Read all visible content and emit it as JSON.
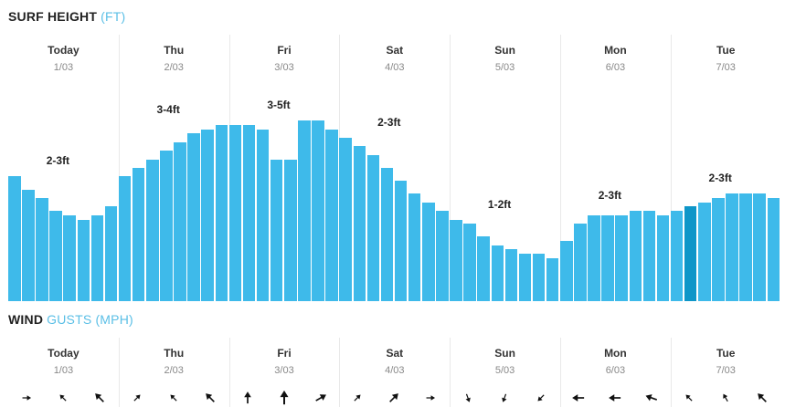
{
  "surf": {
    "title": "SURF HEIGHT",
    "unit": "(FT)",
    "accent_color": "#3ebaea",
    "selected_color": "#0e96c8",
    "days": [
      {
        "name": "Today",
        "date": "1/03",
        "label": "2-3ft"
      },
      {
        "name": "Thu",
        "date": "2/03",
        "label": "3-4ft"
      },
      {
        "name": "Fri",
        "date": "3/03",
        "label": "3-5ft"
      },
      {
        "name": "Sat",
        "date": "4/03",
        "label": "2-3ft"
      },
      {
        "name": "Sun",
        "date": "5/03",
        "label": "1-2ft"
      },
      {
        "name": "Mon",
        "date": "6/03",
        "label": "2-3ft"
      },
      {
        "name": "Tue",
        "date": "7/03",
        "label": "2-3ft"
      }
    ],
    "bars": [
      [
        2.9,
        2.6,
        2.4,
        2.1,
        2.0,
        1.9,
        2.0,
        2.2
      ],
      [
        2.9,
        3.1,
        3.3,
        3.5,
        3.7,
        3.9,
        4.0,
        4.1
      ],
      [
        4.1,
        4.1,
        4.0,
        3.3,
        3.3,
        4.2,
        4.2,
        4.0
      ],
      [
        3.8,
        3.6,
        3.4,
        3.1,
        2.8,
        2.5,
        2.3,
        2.1
      ],
      [
        1.9,
        1.8,
        1.5,
        1.3,
        1.2,
        1.1,
        1.1,
        1.0
      ],
      [
        1.4,
        1.8,
        2.0,
        2.0,
        2.0,
        2.1,
        2.1,
        2.0
      ],
      [
        2.1,
        2.2,
        2.3,
        2.4,
        2.5,
        2.5,
        2.5,
        2.4
      ]
    ],
    "selected_bar": {
      "day": 6,
      "index": 1
    }
  },
  "wind": {
    "title": "WIND",
    "gusts_label": "GUSTS (MPH)",
    "days": [
      {
        "name": "Today",
        "date": "1/03"
      },
      {
        "name": "Thu",
        "date": "2/03"
      },
      {
        "name": "Fri",
        "date": "3/03"
      },
      {
        "name": "Sat",
        "date": "4/03"
      },
      {
        "name": "Sun",
        "date": "5/03"
      },
      {
        "name": "Mon",
        "date": "6/03"
      },
      {
        "name": "Tue",
        "date": "7/03"
      }
    ],
    "arrows": [
      {
        "dir": 90,
        "size": "s"
      },
      {
        "dir": 315,
        "size": "s"
      },
      {
        "dir": 315,
        "size": "m"
      },
      {
        "dir": 45,
        "size": "s"
      },
      {
        "dir": 315,
        "size": "s"
      },
      {
        "dir": 315,
        "size": "m"
      },
      {
        "dir": 0,
        "size": "m"
      },
      {
        "dir": 0,
        "size": "l"
      },
      {
        "dir": 60,
        "size": "m"
      },
      {
        "dir": 45,
        "size": "s"
      },
      {
        "dir": 45,
        "size": "m"
      },
      {
        "dir": 90,
        "size": "s"
      },
      {
        "dir": 160,
        "size": "s"
      },
      {
        "dir": 200,
        "size": "s"
      },
      {
        "dir": 225,
        "size": "s"
      },
      {
        "dir": 270,
        "size": "m"
      },
      {
        "dir": 270,
        "size": "m"
      },
      {
        "dir": 290,
        "size": "m"
      },
      {
        "dir": 315,
        "size": "s"
      },
      {
        "dir": 330,
        "size": "s"
      },
      {
        "dir": 315,
        "size": "m"
      }
    ]
  }
}
